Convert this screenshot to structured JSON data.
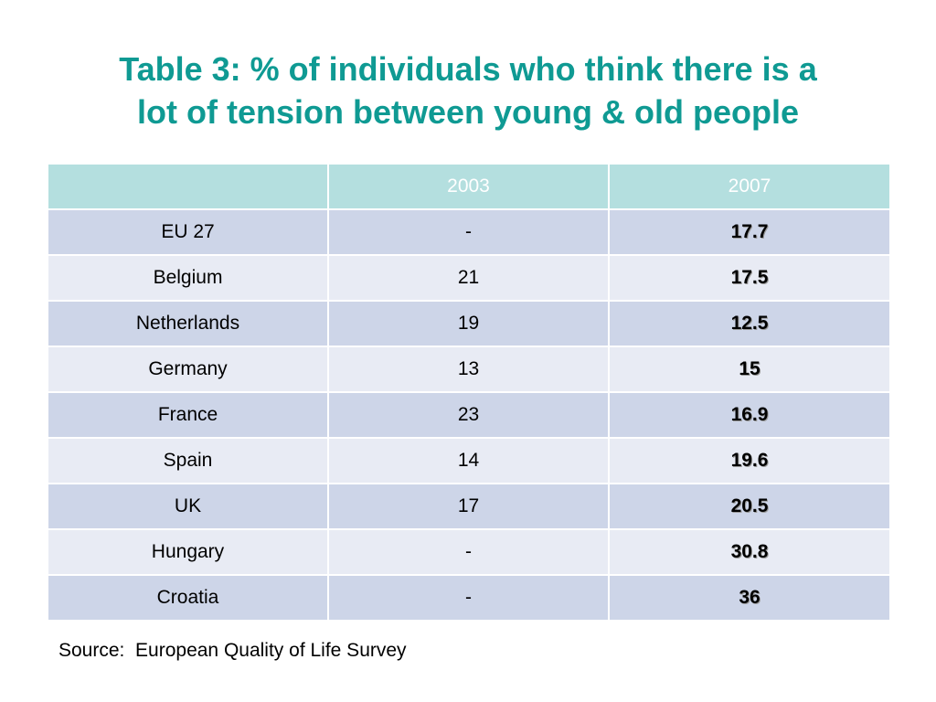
{
  "title": {
    "line1": "Table 3: % of individuals who think there is a",
    "line2": "lot of tension between young & old people"
  },
  "table": {
    "headers": [
      "",
      "2003",
      "2007"
    ],
    "rows": [
      {
        "label": "EU 27",
        "y2003": "-",
        "y2007": "17.7"
      },
      {
        "label": "Belgium",
        "y2003": "21",
        "y2007": "17.5"
      },
      {
        "label": "Netherlands",
        "y2003": "19",
        "y2007": "12.5"
      },
      {
        "label": "Germany",
        "y2003": "13",
        "y2007": "15"
      },
      {
        "label": "France",
        "y2003": "23",
        "y2007": "16.9"
      },
      {
        "label": "Spain",
        "y2003": "14",
        "y2007": "19.6"
      },
      {
        "label": "UK",
        "y2003": "17",
        "y2007": "20.5"
      },
      {
        "label": "Hungary",
        "y2003": "-",
        "y2007": "30.8"
      },
      {
        "label": "Croatia",
        "y2003": "-",
        "y2007": "36"
      }
    ]
  },
  "source": "Source:  European Quality of Life Survey",
  "colors": {
    "title": "#0f9a93",
    "header_bg": "#b4dfdf",
    "row_odd_bg": "#cdd5e8",
    "row_even_bg": "#e8ebf4"
  }
}
